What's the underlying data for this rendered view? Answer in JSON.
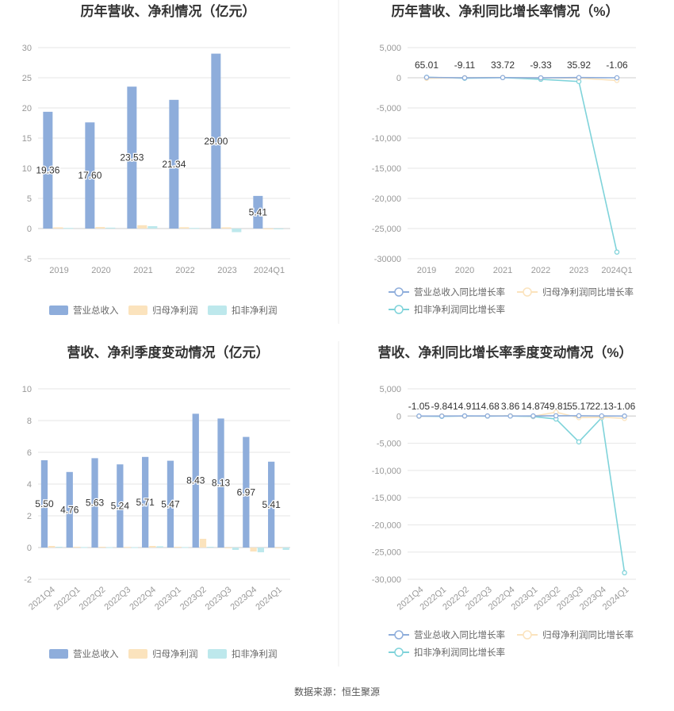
{
  "source_text": "数据来源：恒生聚源",
  "colors": {
    "revenue": "#8EADDB",
    "parent_profit": "#FBE3BD",
    "deducted_profit": "#BDE8EC",
    "revenue_line": "#8EADDB",
    "parent_line": "#FBE3BD",
    "deducted_line": "#7FD3DA",
    "grid": "#E6E6E6",
    "tick_text": "#999999",
    "label_text": "#333333"
  },
  "chart_data": [
    {
      "id": "annual_amount",
      "type": "bar",
      "title": "历年营收、净利情况（亿元）",
      "categories": [
        "2019",
        "2020",
        "2021",
        "2022",
        "2023",
        "2024Q1"
      ],
      "yticks": [
        "30",
        "25",
        "20",
        "15",
        "10",
        "5",
        "0",
        "-5"
      ],
      "ylim": [
        -5,
        30
      ],
      "series": [
        {
          "name": "营业总收入",
          "values": [
            19.36,
            17.6,
            23.53,
            21.34,
            29.0,
            5.41
          ],
          "labels": [
            "19.36",
            "17.60",
            "23.53",
            "21.34",
            "29.00",
            "5.41"
          ]
        },
        {
          "name": "归母净利润",
          "values": [
            0.2,
            0.25,
            0.55,
            0.22,
            0.2,
            -0.05
          ]
        },
        {
          "name": "扣非净利润",
          "values": [
            0.1,
            0.15,
            0.4,
            0.1,
            -0.6,
            -0.1
          ]
        }
      ],
      "legend_position": "bottom"
    },
    {
      "id": "annual_growth",
      "type": "line",
      "title": "历年营收、净利同比增长率情况（%）",
      "categories": [
        "2019",
        "2020",
        "2021",
        "2022",
        "2023",
        "2024Q1"
      ],
      "yticks": [
        "5,000",
        "0",
        "-5,000",
        "-10,000",
        "-15,000",
        "-20,000",
        "-25,000",
        "-30000"
      ],
      "ylim": [
        -30000,
        5000
      ],
      "series": [
        {
          "name": "营业总收入同比增长率",
          "values": [
            65.01,
            -9.11,
            33.72,
            -9.33,
            35.92,
            -1.06
          ],
          "labels": [
            "65.01",
            "-9.11",
            "33.72",
            "-9.33",
            "35.92",
            "-1.06"
          ]
        },
        {
          "name": "归母净利润同比增长率",
          "values": [
            -100,
            20,
            50,
            -30,
            -60,
            -450
          ]
        },
        {
          "name": "扣非净利润同比增长率",
          "values": [
            80,
            -80,
            30,
            -250,
            -620,
            -28900
          ]
        }
      ],
      "legend_position": "bottom"
    },
    {
      "id": "quarterly_amount",
      "type": "bar",
      "title": "营收、净利季度变动情况（亿元）",
      "categories": [
        "2021Q4",
        "2022Q1",
        "2022Q2",
        "2022Q3",
        "2022Q4",
        "2023Q1",
        "2023Q2",
        "2023Q3",
        "2023Q4",
        "2024Q1"
      ],
      "yticks": [
        "10",
        "8",
        "6",
        "4",
        "2",
        "0",
        "-2"
      ],
      "ylim": [
        -2,
        10
      ],
      "series": [
        {
          "name": "营业总收入",
          "values": [
            5.5,
            4.76,
            5.63,
            5.24,
            5.71,
            5.47,
            8.43,
            8.13,
            6.97,
            5.41
          ],
          "labels": [
            "5.50",
            "4.76",
            "5.63",
            "5.24",
            "5.71",
            "5.47",
            "8.43",
            "8.13",
            "6.97",
            "5.41"
          ]
        },
        {
          "name": "归母净利润",
          "values": [
            0.1,
            0.05,
            0.05,
            0.04,
            0.1,
            0.05,
            0.55,
            -0.05,
            -0.25,
            -0.05
          ]
        },
        {
          "name": "扣非净利润",
          "values": [
            0.05,
            0.03,
            0.02,
            0.02,
            0.08,
            0.03,
            0.05,
            -0.15,
            -0.3,
            -0.15
          ]
        }
      ],
      "legend_position": "bottom"
    },
    {
      "id": "quarterly_growth",
      "type": "line",
      "title": "营收、净利同比增长率季度变动情况（%）",
      "categories": [
        "2021Q4",
        "2022Q1",
        "2022Q2",
        "2022Q3",
        "2022Q4",
        "2023Q1",
        "2023Q2",
        "2023Q3",
        "2023Q4",
        "2024Q1"
      ],
      "yticks": [
        "5,000",
        "0",
        "-5,000",
        "-10,000",
        "-15,000",
        "-20,000",
        "-25,000",
        "-30,000"
      ],
      "ylim": [
        -30000,
        5000
      ],
      "series": [
        {
          "name": "营业总收入同比增长率",
          "values": [
            -1.05,
            -9.84,
            14.91,
            14.68,
            3.86,
            14.87,
            49.81,
            55.17,
            22.13,
            -1.06
          ],
          "labels": [
            "-1.05",
            "-9.84",
            "14.91",
            "14.68",
            "3.86",
            "14.87",
            "49.81",
            "55.17",
            "22.13",
            "-1.06"
          ]
        },
        {
          "name": "归母净利润同比增长率",
          "values": [
            -50,
            30,
            -20,
            10,
            40,
            -40,
            700,
            -300,
            -200,
            -450
          ]
        },
        {
          "name": "扣非净利润同比增长率",
          "values": [
            -30,
            -60,
            20,
            -20,
            20,
            -100,
            -550,
            -4750,
            -300,
            -28800
          ]
        }
      ],
      "legend_position": "bottom"
    }
  ]
}
